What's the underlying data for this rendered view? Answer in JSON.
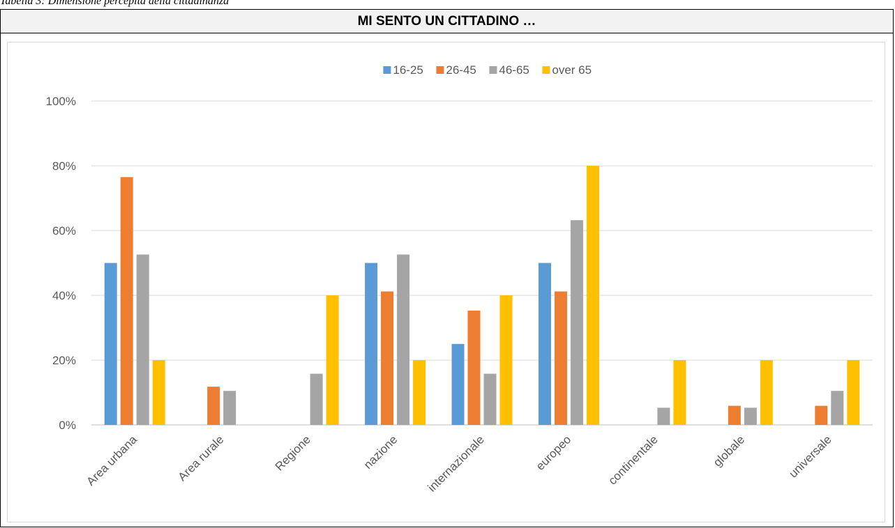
{
  "caption": "Tabella 3: Dimensione percepita della cittadinanza",
  "chart_data": {
    "type": "bar",
    "title": "MI SENTO UN CITTADINO …",
    "categories": [
      "Area urbana",
      "Area rurale",
      "Regione",
      "nazione",
      "internazionale",
      "europeo",
      "continentale",
      "globale",
      "universale"
    ],
    "series": [
      {
        "name": "16-25",
        "color": "#5b9bd5",
        "values": [
          50,
          0,
          0,
          50,
          25,
          50,
          0,
          0,
          0
        ]
      },
      {
        "name": "26-45",
        "color": "#ed7d31",
        "values": [
          76.5,
          11.8,
          0,
          41.2,
          35.3,
          41.2,
          0,
          5.9,
          5.9
        ]
      },
      {
        "name": "46-65",
        "color": "#a5a5a5",
        "values": [
          52.6,
          10.5,
          15.8,
          52.6,
          15.8,
          63.2,
          5.3,
          5.3,
          10.5
        ]
      },
      {
        "name": "over 65",
        "color": "#ffc000",
        "values": [
          20,
          0,
          40,
          20,
          40,
          80,
          20,
          20,
          20
        ]
      }
    ],
    "ylim": [
      0,
      100
    ],
    "yticks": [
      "0%",
      "20%",
      "40%",
      "60%",
      "80%",
      "100%"
    ],
    "grid": true,
    "legend_position": "top"
  }
}
